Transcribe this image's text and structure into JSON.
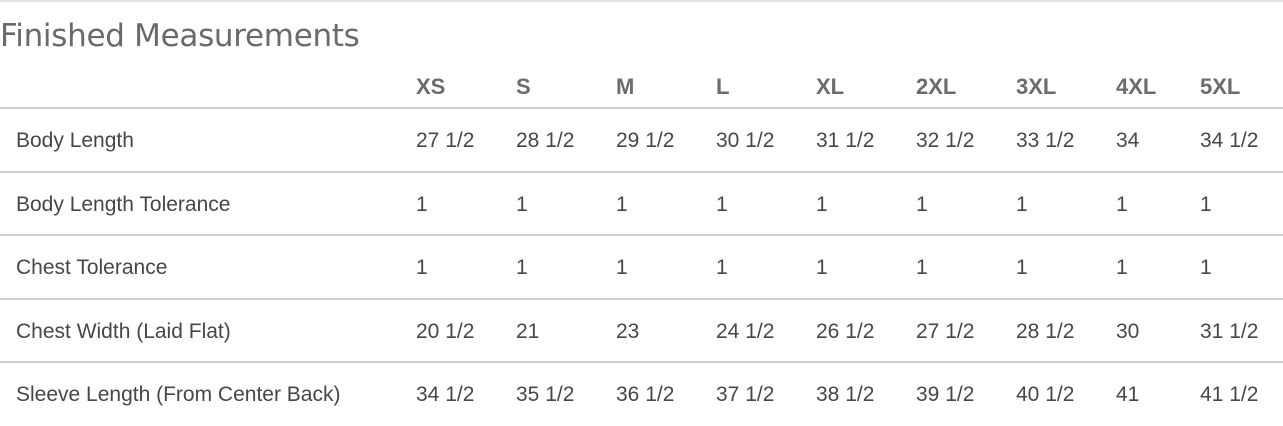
{
  "title": "Finished Measurements",
  "sizes": [
    "XS",
    "S",
    "M",
    "L",
    "XL",
    "2XL",
    "3XL",
    "4XL",
    "5XL"
  ],
  "rows": [
    {
      "label": "Body Length",
      "values": [
        "27 1/2",
        "28 1/2",
        "29 1/2",
        "30 1/2",
        "31 1/2",
        "32 1/2",
        "33 1/2",
        "34",
        "34 1/2"
      ]
    },
    {
      "label": "Body Length Tolerance",
      "values": [
        "1",
        "1",
        "1",
        "1",
        "1",
        "1",
        "1",
        "1",
        "1"
      ]
    },
    {
      "label": "Chest Tolerance",
      "values": [
        "1",
        "1",
        "1",
        "1",
        "1",
        "1",
        "1",
        "1",
        "1"
      ]
    },
    {
      "label": "Chest Width (Laid Flat)",
      "values": [
        "20 1/2",
        "21",
        "23",
        "24 1/2",
        "26 1/2",
        "27 1/2",
        "28 1/2",
        "30",
        "31 1/2"
      ]
    },
    {
      "label": "Sleeve Length (From Center Back)",
      "values": [
        "34 1/2",
        "35 1/2",
        "36 1/2",
        "37 1/2",
        "38 1/2",
        "39 1/2",
        "40 1/2",
        "41",
        "41 1/2"
      ]
    }
  ]
}
